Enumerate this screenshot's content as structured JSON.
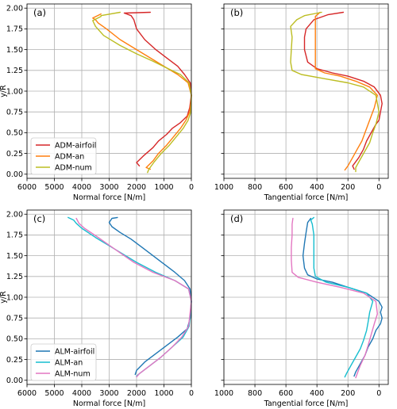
{
  "chart_data": [
    {
      "type": "line",
      "panel_label": "(a)",
      "xlabel": "Normal force [N/m]",
      "ylabel": "y/R",
      "xlim": [
        6000,
        0
      ],
      "ylim": [
        -0.05,
        2.05
      ],
      "x_ticks": [
        "6000",
        "5000",
        "4000",
        "3000",
        "2000",
        "1000",
        "0"
      ],
      "y_ticks": [
        "0.00",
        "0.25",
        "0.50",
        "0.75",
        "1.00",
        "1.25",
        "1.50",
        "1.75",
        "2.00"
      ],
      "grid": true,
      "legend": "lower-left",
      "series": [
        {
          "name": "ADM-airfoil",
          "color": "#d62728",
          "x": [
            1900,
            2000,
            1750,
            1400,
            1200,
            900,
            700,
            400,
            150,
            60,
            0,
            40,
            250,
            500,
            900,
            1300,
            1700,
            2000,
            2100,
            2200,
            2450,
            1500
          ],
          "y": [
            0.1,
            0.14,
            0.22,
            0.32,
            0.4,
            0.48,
            0.55,
            0.62,
            0.7,
            0.8,
            0.95,
            1.1,
            1.2,
            1.3,
            1.4,
            1.5,
            1.62,
            1.75,
            1.86,
            1.91,
            1.94,
            1.95
          ]
        },
        {
          "name": "ADM-an",
          "color": "#ff7f0e",
          "x": [
            1500,
            1650,
            1400,
            1200,
            900,
            650,
            400,
            200,
            60,
            20,
            0,
            120,
            500,
            1000,
            1500,
            2000,
            2600,
            3100,
            3400,
            3500,
            3600,
            3300
          ],
          "y": [
            0.06,
            0.08,
            0.16,
            0.25,
            0.35,
            0.45,
            0.55,
            0.65,
            0.75,
            0.85,
            0.95,
            1.1,
            1.2,
            1.3,
            1.4,
            1.5,
            1.62,
            1.75,
            1.82,
            1.86,
            1.88,
            1.93
          ]
        },
        {
          "name": "ADM-num",
          "color": "#bcbd22",
          "x": [
            1600,
            1550,
            1350,
            1100,
            800,
            550,
            300,
            120,
            20,
            0,
            80,
            400,
            900,
            1400,
            2000,
            2600,
            3200,
            3500,
            3600,
            3300,
            3300,
            2600
          ],
          "y": [
            0.02,
            0.06,
            0.15,
            0.25,
            0.35,
            0.45,
            0.55,
            0.65,
            0.75,
            0.95,
            1.1,
            1.2,
            1.28,
            1.36,
            1.45,
            1.55,
            1.67,
            1.78,
            1.85,
            1.9,
            1.91,
            1.95
          ]
        }
      ]
    },
    {
      "type": "line",
      "panel_label": "(b)",
      "xlabel": "Tangential force [N/m]",
      "ylabel": "",
      "xlim": [
        1000,
        -60
      ],
      "ylim": [
        -0.05,
        2.05
      ],
      "x_ticks": [
        "1000",
        "800",
        "600",
        "400",
        "200",
        "0"
      ],
      "grid": true,
      "series": [
        {
          "name": "ADM-airfoil",
          "color": "#d62728",
          "x": [
            160,
            170,
            130,
            100,
            80,
            50,
            20,
            0,
            -10,
            -20,
            -10,
            30,
            100,
            200,
            300,
            400,
            460,
            480,
            480,
            470,
            420,
            330,
            230
          ],
          "y": [
            0.06,
            0.1,
            0.2,
            0.3,
            0.4,
            0.5,
            0.6,
            0.65,
            0.75,
            0.85,
            0.95,
            1.05,
            1.12,
            1.18,
            1.22,
            1.27,
            1.35,
            1.5,
            1.65,
            1.75,
            1.86,
            1.92,
            1.95
          ]
        },
        {
          "name": "ADM-an",
          "color": "#ff7f0e",
          "x": [
            220,
            200,
            170,
            140,
            110,
            90,
            70,
            50,
            30,
            10,
            60,
            150,
            250,
            350,
            410,
            410,
            410,
            410,
            410,
            380
          ],
          "y": [
            0.05,
            0.1,
            0.2,
            0.3,
            0.4,
            0.5,
            0.6,
            0.7,
            0.8,
            0.95,
            1.05,
            1.12,
            1.18,
            1.22,
            1.27,
            1.4,
            1.6,
            1.8,
            1.9,
            1.95
          ]
        },
        {
          "name": "ADM-num",
          "color": "#bcbd22",
          "x": [
            150,
            150,
            120,
            90,
            60,
            40,
            20,
            0,
            20,
            100,
            200,
            350,
            500,
            560,
            570,
            565,
            560,
            570,
            530,
            480,
            370
          ],
          "y": [
            0.03,
            0.08,
            0.18,
            0.28,
            0.38,
            0.5,
            0.6,
            0.75,
            0.95,
            1.05,
            1.1,
            1.15,
            1.2,
            1.25,
            1.35,
            1.5,
            1.65,
            1.78,
            1.86,
            1.91,
            1.95
          ]
        }
      ]
    },
    {
      "type": "line",
      "panel_label": "(c)",
      "xlabel": "Normal force [N/m]",
      "ylabel": "y/R",
      "xlim": [
        6000,
        0
      ],
      "ylim": [
        -0.05,
        2.05
      ],
      "x_ticks": [
        "6000",
        "5000",
        "4000",
        "3000",
        "2000",
        "1000",
        "0"
      ],
      "y_ticks": [
        "0.00",
        "0.25",
        "0.50",
        "0.75",
        "1.00",
        "1.25",
        "1.50",
        "1.75",
        "2.00"
      ],
      "grid": true,
      "legend": "lower-left",
      "series": [
        {
          "name": "ALM-airfoil",
          "color": "#1f77b4",
          "x": [
            2050,
            2000,
            1700,
            1300,
            900,
            500,
            150,
            40,
            0,
            50,
            250,
            600,
            1000,
            1400,
            1800,
            2200,
            2600,
            2900,
            3000,
            2900,
            2700
          ],
          "y": [
            0.07,
            0.12,
            0.22,
            0.32,
            0.42,
            0.52,
            0.62,
            0.75,
            0.95,
            1.1,
            1.2,
            1.3,
            1.4,
            1.5,
            1.6,
            1.7,
            1.78,
            1.85,
            1.9,
            1.95,
            1.96
          ]
        },
        {
          "name": "ALM-an",
          "color": "#17becf",
          "x": [
            2000,
            1900,
            1500,
            1100,
            700,
            300,
            80,
            0,
            100,
            600,
            1300,
            2000,
            2800,
            3500,
            4000,
            4200,
            4300,
            4500
          ],
          "y": [
            0.05,
            0.08,
            0.18,
            0.28,
            0.4,
            0.52,
            0.65,
            0.95,
            1.1,
            1.2,
            1.3,
            1.42,
            1.58,
            1.72,
            1.83,
            1.89,
            1.93,
            1.96
          ]
        },
        {
          "name": "ALM-num",
          "color": "#e377c2",
          "x": [
            2000,
            1900,
            1500,
            1100,
            700,
            350,
            100,
            0,
            100,
            600,
            1400,
            2100,
            2800,
            3400,
            3900,
            4100,
            4200
          ],
          "y": [
            0.04,
            0.08,
            0.18,
            0.28,
            0.4,
            0.52,
            0.65,
            0.95,
            1.1,
            1.2,
            1.3,
            1.42,
            1.58,
            1.72,
            1.83,
            1.89,
            1.95
          ]
        }
      ]
    },
    {
      "type": "line",
      "panel_label": "(d)",
      "xlabel": "Tangential force [N/m]",
      "ylabel": "",
      "xlim": [
        1000,
        -60
      ],
      "ylim": [
        -0.05,
        2.05
      ],
      "x_ticks": [
        "1000",
        "800",
        "600",
        "400",
        "200",
        "0"
      ],
      "grid": true,
      "series": [
        {
          "name": "ALM-airfoil",
          "color": "#1f77b4",
          "x": [
            160,
            150,
            120,
            90,
            70,
            40,
            20,
            -10,
            -20,
            -10,
            -20,
            0,
            80,
            200,
            300,
            400,
            460,
            480,
            490,
            480,
            470,
            460,
            440
          ],
          "y": [
            0.05,
            0.1,
            0.2,
            0.3,
            0.4,
            0.5,
            0.6,
            0.68,
            0.75,
            0.82,
            0.88,
            0.95,
            1.05,
            1.12,
            1.18,
            1.22,
            1.27,
            1.35,
            1.5,
            1.65,
            1.78,
            1.9,
            1.95
          ]
        },
        {
          "name": "ALM-an",
          "color": "#17becf",
          "x": [
            220,
            210,
            180,
            150,
            120,
            100,
            80,
            70,
            60,
            40,
            80,
            200,
            340,
            410,
            420,
            420,
            420,
            430,
            440,
            420
          ],
          "y": [
            0.04,
            0.08,
            0.18,
            0.28,
            0.38,
            0.48,
            0.6,
            0.7,
            0.82,
            0.95,
            1.05,
            1.12,
            1.18,
            1.25,
            1.35,
            1.55,
            1.75,
            1.88,
            1.93,
            1.96
          ]
        },
        {
          "name": "ALM-num",
          "color": "#e377c2",
          "x": [
            150,
            140,
            120,
            90,
            70,
            50,
            30,
            10,
            20,
            100,
            250,
            400,
            520,
            560,
            565,
            565,
            560,
            560,
            555
          ],
          "y": [
            0.03,
            0.08,
            0.18,
            0.3,
            0.42,
            0.55,
            0.68,
            0.8,
            0.95,
            1.05,
            1.12,
            1.18,
            1.24,
            1.3,
            1.45,
            1.6,
            1.75,
            1.88,
            1.95
          ]
        }
      ]
    }
  ]
}
